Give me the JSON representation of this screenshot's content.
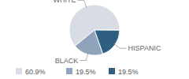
{
  "chart_data": {
    "type": "pie",
    "categories": [
      "WHITE",
      "BLACK",
      "HISPANIC"
    ],
    "values": [
      60.9,
      19.5,
      19.5
    ],
    "value_labels": [
      "60.9%",
      "19.5%",
      "19.5%"
    ],
    "colors": [
      "#d8dde5",
      "#8fa3ba",
      "#2f5f80"
    ],
    "legend": "bottom"
  }
}
